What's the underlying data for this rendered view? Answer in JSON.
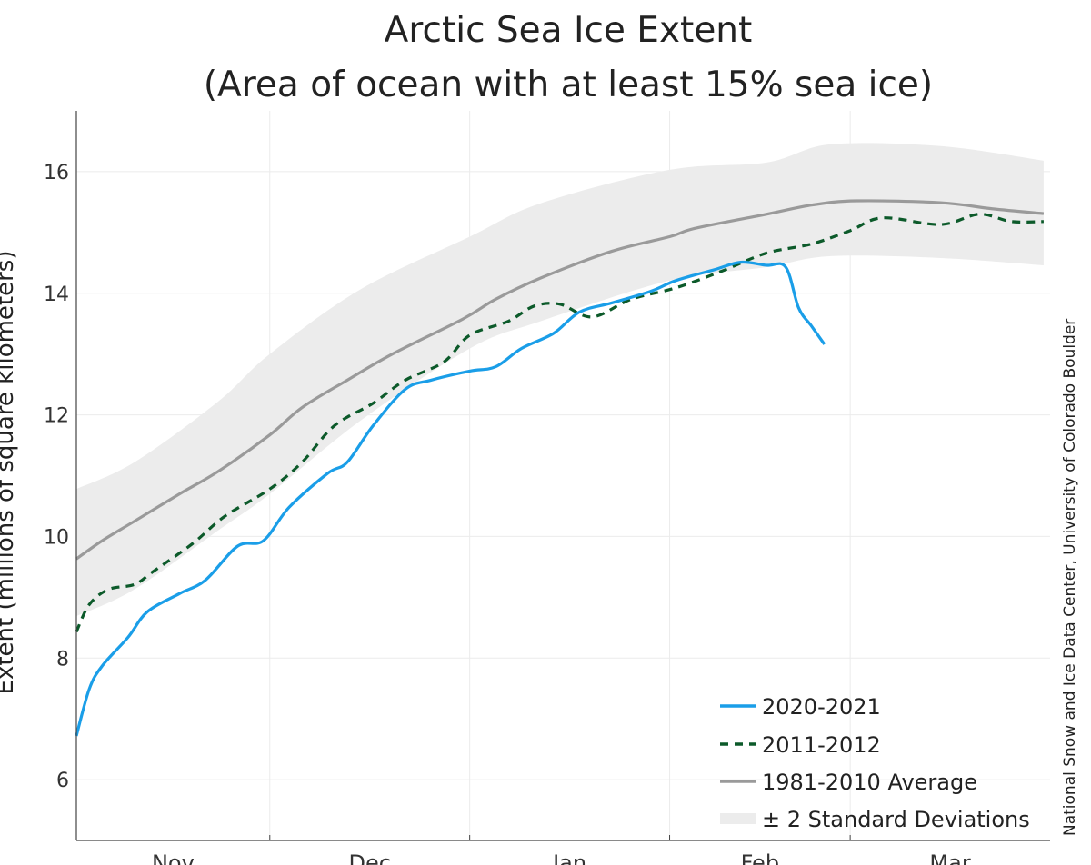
{
  "chart_data": {
    "type": "line",
    "title_line1": "Arctic Sea Ice Extent",
    "title_line2": "(Area of ocean with at least 15% sea ice)",
    "ylabel": "Extent (millions of square kilometers)",
    "credit": "National Snow and Ice Data Center, University of Colorado Boulder",
    "ylim": [
      5,
      17
    ],
    "yticks": [
      6,
      8,
      10,
      12,
      14,
      16
    ],
    "xlim": [
      "11-01",
      "03-31"
    ],
    "xtick_labels": [
      "Nov",
      "Dec",
      "Jan",
      "Feb",
      "Mar"
    ],
    "grid": true,
    "legend_placement": "bottom-right",
    "band": {
      "name": "± 2 Standard Deviations",
      "color": "#ececec",
      "x": [
        "11-01",
        "11-10",
        "11-23",
        "12-01",
        "12-15",
        "01-01",
        "01-12",
        "02-01",
        "02-16",
        "02-26",
        "03-15",
        "03-31"
      ],
      "upper": [
        10.78,
        11.22,
        12.22,
        13.0,
        14.06,
        14.93,
        15.48,
        16.03,
        16.15,
        16.45,
        16.42,
        16.18
      ],
      "lower": [
        8.69,
        9.13,
        10.1,
        10.7,
        11.9,
        13.09,
        13.54,
        14.21,
        14.43,
        14.61,
        14.58,
        14.46
      ]
    },
    "series": [
      {
        "name": "2020-2021",
        "color": "#1a9ee8",
        "style": "solid",
        "x": [
          "11-01",
          "11-03",
          "11-05",
          "11-09",
          "11-12",
          "11-17",
          "11-21",
          "11-26",
          "11-30",
          "12-04",
          "12-10",
          "12-13",
          "12-17",
          "12-22",
          "12-26",
          "01-01",
          "01-05",
          "01-09",
          "01-14",
          "01-18",
          "01-23",
          "01-29",
          "02-02",
          "02-08",
          "02-12",
          "02-16",
          "02-19",
          "02-21",
          "02-23",
          "02-25"
        ],
        "y": [
          6.72,
          7.49,
          7.87,
          8.34,
          8.76,
          9.06,
          9.28,
          9.84,
          9.93,
          10.48,
          11.04,
          11.22,
          11.82,
          12.42,
          12.57,
          12.72,
          12.79,
          13.09,
          13.34,
          13.69,
          13.84,
          14.03,
          14.21,
          14.39,
          14.51,
          14.46,
          14.43,
          13.76,
          13.46,
          13.16
        ]
      },
      {
        "name": "2011-2012",
        "color": "#0c5a2a",
        "style": "dashed",
        "x": [
          "11-01",
          "11-03",
          "11-06",
          "11-10",
          "11-13",
          "11-19",
          "11-24",
          "12-01",
          "12-06",
          "12-11",
          "12-17",
          "12-22",
          "12-28",
          "01-01",
          "01-07",
          "01-11",
          "01-15",
          "01-20",
          "01-26",
          "02-02",
          "02-09",
          "02-16",
          "02-23",
          "03-01",
          "03-06",
          "03-15",
          "03-21",
          "03-26",
          "03-31"
        ],
        "y": [
          8.43,
          8.88,
          9.13,
          9.21,
          9.43,
          9.88,
          10.33,
          10.78,
          11.22,
          11.82,
          12.19,
          12.57,
          12.87,
          13.31,
          13.54,
          13.79,
          13.82,
          13.61,
          13.9,
          14.09,
          14.36,
          14.66,
          14.81,
          15.03,
          15.24,
          15.13,
          15.3,
          15.18,
          15.18
        ]
      },
      {
        "name": "1981-2010 Average",
        "color": "#9a9a9a",
        "style": "solid",
        "x": [
          "11-01",
          "11-05",
          "11-10",
          "11-17",
          "11-23",
          "12-01",
          "12-06",
          "12-13",
          "12-20",
          "12-31",
          "01-05",
          "01-12",
          "01-23",
          "02-01",
          "02-05",
          "02-16",
          "02-23",
          "03-02",
          "03-15",
          "03-23",
          "03-31"
        ],
        "y": [
          9.63,
          9.93,
          10.25,
          10.7,
          11.07,
          11.67,
          12.12,
          12.57,
          13.0,
          13.58,
          13.9,
          14.25,
          14.69,
          14.93,
          15.07,
          15.3,
          15.45,
          15.52,
          15.49,
          15.39,
          15.31
        ]
      }
    ]
  }
}
